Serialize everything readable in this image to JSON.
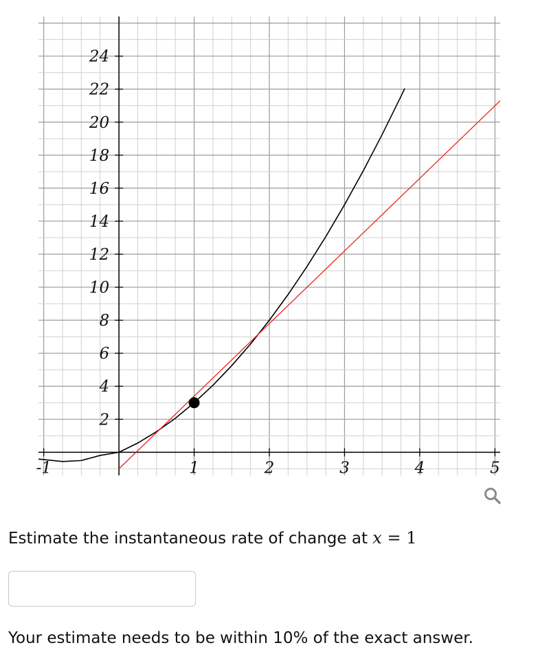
{
  "chart_data": {
    "type": "line",
    "x_ticks": [
      "-1",
      "1",
      "2",
      "3",
      "4",
      "5"
    ],
    "y_ticks": [
      "2",
      "4",
      "6",
      "8",
      "10",
      "12",
      "14",
      "16",
      "18",
      "20",
      "22",
      "24"
    ],
    "xlim": [
      -1.07,
      5.07
    ],
    "ylim": [
      -1.4,
      26.4
    ],
    "grid": true,
    "series": [
      {
        "kind": "curve",
        "color": "#000000",
        "x": [
          -1.07,
          -0.75,
          -0.5,
          -0.25,
          0,
          0.25,
          0.5,
          0.75,
          1,
          1.25,
          1.5,
          1.75,
          2,
          2.25,
          2.5,
          2.75,
          3,
          3.25,
          3.5,
          3.75,
          3.8
        ],
        "y": [
          -0.41,
          -0.56,
          -0.5,
          -0.19,
          0.0,
          0.56,
          1.25,
          2.06,
          3.0,
          4.06,
          5.25,
          6.56,
          8.0,
          9.56,
          11.25,
          13.06,
          15.0,
          17.06,
          19.25,
          21.56,
          22.04
        ]
      },
      {
        "kind": "tangent",
        "color": "#e8231b",
        "x": [
          0,
          5.07
        ],
        "y": [
          -1.0,
          21.3
        ]
      }
    ],
    "point": {
      "x": 1,
      "y": 3,
      "color": "#000000"
    }
  },
  "question": {
    "prefix": "Estimate the instantaneous rate of change at ",
    "math_var": "x",
    "math_rest": " = 1"
  },
  "answer": {
    "value": "",
    "placeholder": ""
  },
  "footnote": "Your estimate needs to be within 10% of the exact answer.",
  "icons": {
    "zoom": "magnifier-icon"
  }
}
